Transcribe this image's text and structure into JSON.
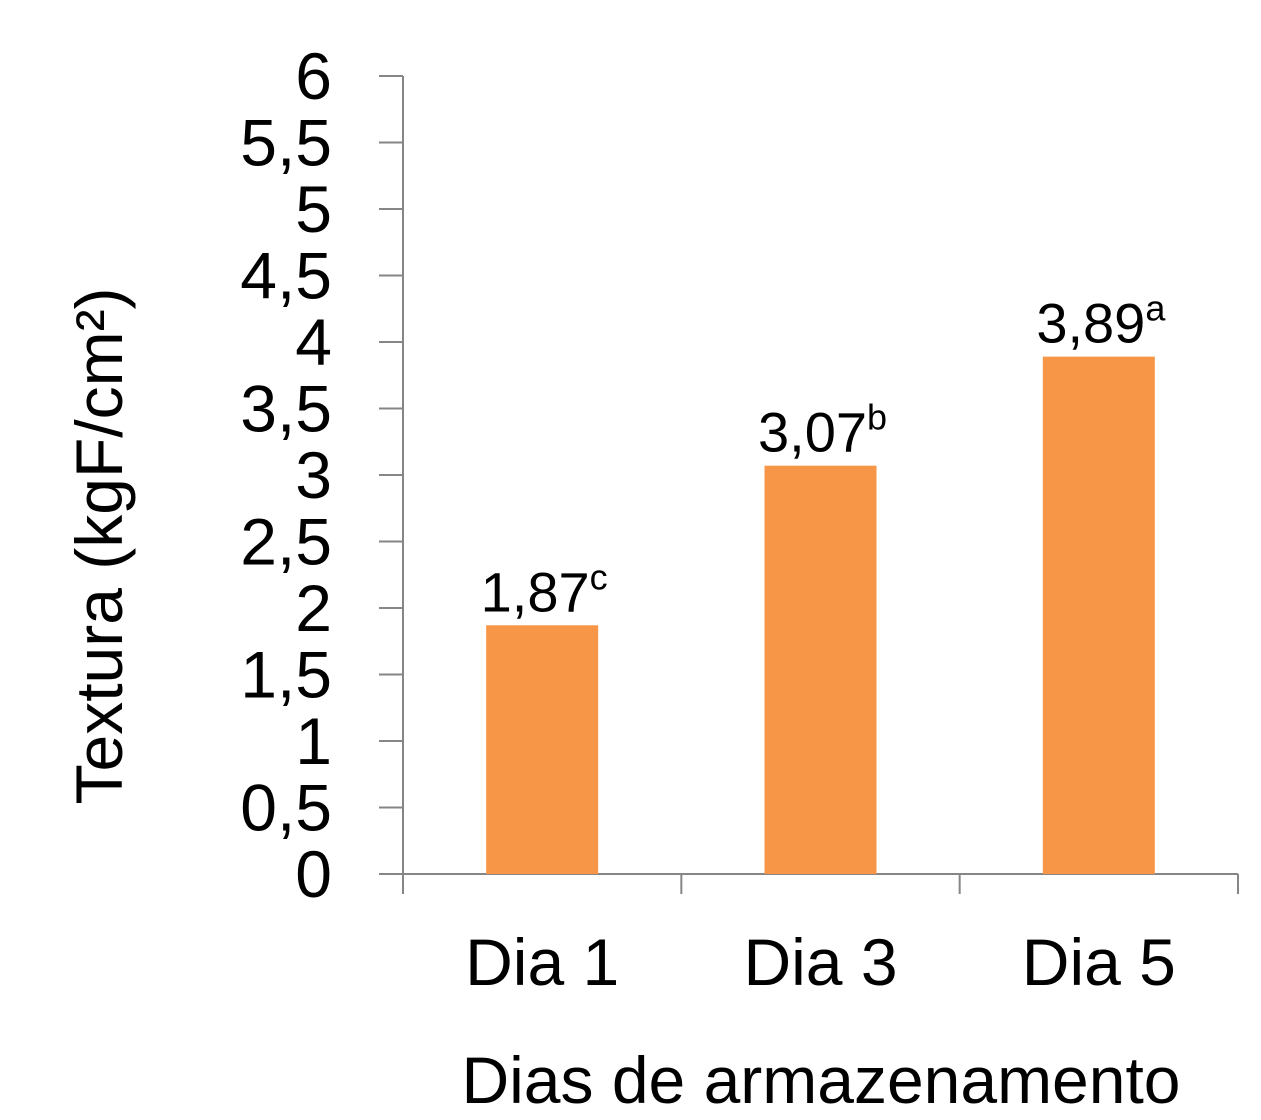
{
  "chart_data": {
    "type": "bar",
    "title": "",
    "xlabel": "Dias de armazenamento",
    "ylabel": "Textura (kgF/cm²)",
    "categories": [
      "Dia 1",
      "Dia 3",
      "Dia 5"
    ],
    "values": [
      1.87,
      3.07,
      3.89
    ],
    "data_labels": [
      {
        "value": "1,87",
        "sup": "c"
      },
      {
        "value": "3,07",
        "sup": "b"
      },
      {
        "value": "3,89",
        "sup": "a"
      }
    ],
    "ylim": [
      0,
      6
    ],
    "yticks": [
      0,
      0.5,
      1,
      1.5,
      2,
      2.5,
      3,
      3.5,
      4,
      4.5,
      5,
      5.5,
      6
    ],
    "ytick_labels": [
      "0",
      "0,5",
      "1",
      "1,5",
      "2",
      "2,5",
      "3",
      "3,5",
      "4",
      "4,5",
      "5",
      "5,5",
      "6"
    ],
    "grid": false,
    "legend": "none",
    "colors": {
      "bar": "#F79646",
      "axis": "#868686",
      "text": "#000000"
    }
  }
}
